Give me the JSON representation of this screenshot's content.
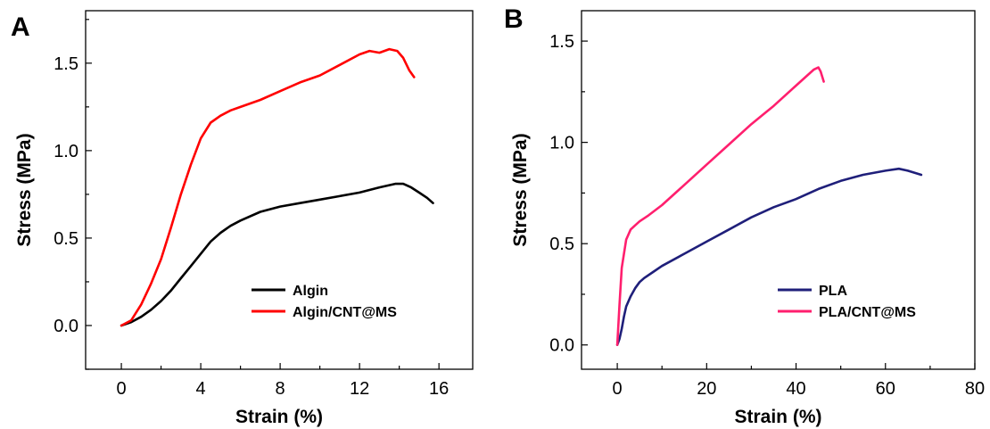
{
  "chart_data": [
    {
      "type": "line",
      "panel_label": "A",
      "xlabel": "Strain (%)",
      "ylabel": "Stress (MPa)",
      "xlim": [
        -1.8,
        17.7
      ],
      "ylim": [
        -0.25,
        1.8
      ],
      "xticks": [
        0,
        4,
        8,
        12,
        16
      ],
      "xtick_labels": [
        "0",
        "4",
        "8",
        "12",
        "16"
      ],
      "yticks": [
        0.0,
        0.5,
        1.0,
        1.5
      ],
      "ytick_labels": [
        "0.0",
        "0.5",
        "1.0",
        "1.5"
      ],
      "grid": false,
      "legend_position": "bottom-right",
      "series": [
        {
          "name": "Algin",
          "color": "#000000",
          "x": [
            0,
            0.5,
            1.0,
            1.5,
            2.0,
            2.5,
            3.0,
            3.5,
            4.0,
            4.5,
            5.0,
            5.5,
            6.0,
            7.0,
            8.0,
            9.0,
            10.0,
            11.0,
            12.0,
            13.0,
            13.8,
            14.2,
            14.6,
            15.0,
            15.4,
            15.7
          ],
          "y": [
            0.0,
            0.02,
            0.05,
            0.09,
            0.14,
            0.2,
            0.27,
            0.34,
            0.41,
            0.48,
            0.53,
            0.57,
            0.6,
            0.65,
            0.68,
            0.7,
            0.72,
            0.74,
            0.76,
            0.79,
            0.81,
            0.81,
            0.79,
            0.76,
            0.73,
            0.7
          ]
        },
        {
          "name": "Algin/CNT@MS",
          "color": "#ff0000",
          "x": [
            0,
            0.5,
            1.0,
            1.5,
            2.0,
            2.5,
            3.0,
            3.5,
            4.0,
            4.5,
            5.0,
            5.5,
            6.0,
            7.0,
            8.0,
            9.0,
            10.0,
            11.0,
            12.0,
            12.5,
            13.0,
            13.5,
            13.9,
            14.2,
            14.5,
            14.75
          ],
          "y": [
            0.0,
            0.03,
            0.12,
            0.24,
            0.38,
            0.56,
            0.75,
            0.92,
            1.07,
            1.16,
            1.2,
            1.23,
            1.25,
            1.29,
            1.34,
            1.39,
            1.43,
            1.49,
            1.55,
            1.57,
            1.56,
            1.58,
            1.57,
            1.53,
            1.46,
            1.42
          ]
        }
      ]
    },
    {
      "type": "line",
      "panel_label": "B",
      "xlabel": "Strain (%)",
      "ylabel": "Stress (MPa)",
      "xlim": [
        -8,
        80
      ],
      "ylim": [
        -0.12,
        1.65
      ],
      "xticks": [
        0,
        20,
        40,
        60,
        80
      ],
      "xtick_labels": [
        "0",
        "20",
        "40",
        "60",
        "80"
      ],
      "yticks": [
        0.0,
        0.5,
        1.0,
        1.5
      ],
      "ytick_labels": [
        "0.0",
        "0.5",
        "1.0",
        "1.5"
      ],
      "grid": false,
      "legend_position": "bottom-right",
      "series": [
        {
          "name": "PLA",
          "color": "#1f1f7a",
          "x": [
            0,
            0.5,
            1,
            1.5,
            2,
            3,
            4,
            5,
            6,
            8,
            10,
            15,
            20,
            25,
            30,
            35,
            40,
            45,
            50,
            55,
            60,
            63,
            65,
            68
          ],
          "y": [
            0.0,
            0.03,
            0.08,
            0.14,
            0.19,
            0.24,
            0.28,
            0.31,
            0.33,
            0.36,
            0.39,
            0.45,
            0.51,
            0.57,
            0.63,
            0.68,
            0.72,
            0.77,
            0.81,
            0.84,
            0.86,
            0.87,
            0.86,
            0.84
          ]
        },
        {
          "name": "PLA/CNT@MS",
          "color": "#ff1f6e",
          "x": [
            0,
            0.5,
            1,
            2,
            3,
            4,
            5,
            7,
            10,
            15,
            20,
            25,
            30,
            35,
            40,
            42,
            44,
            45,
            45.5,
            46.2
          ],
          "y": [
            0.0,
            0.2,
            0.38,
            0.52,
            0.57,
            0.59,
            0.61,
            0.64,
            0.69,
            0.79,
            0.89,
            0.99,
            1.09,
            1.18,
            1.28,
            1.32,
            1.36,
            1.37,
            1.35,
            1.3
          ]
        }
      ]
    }
  ]
}
